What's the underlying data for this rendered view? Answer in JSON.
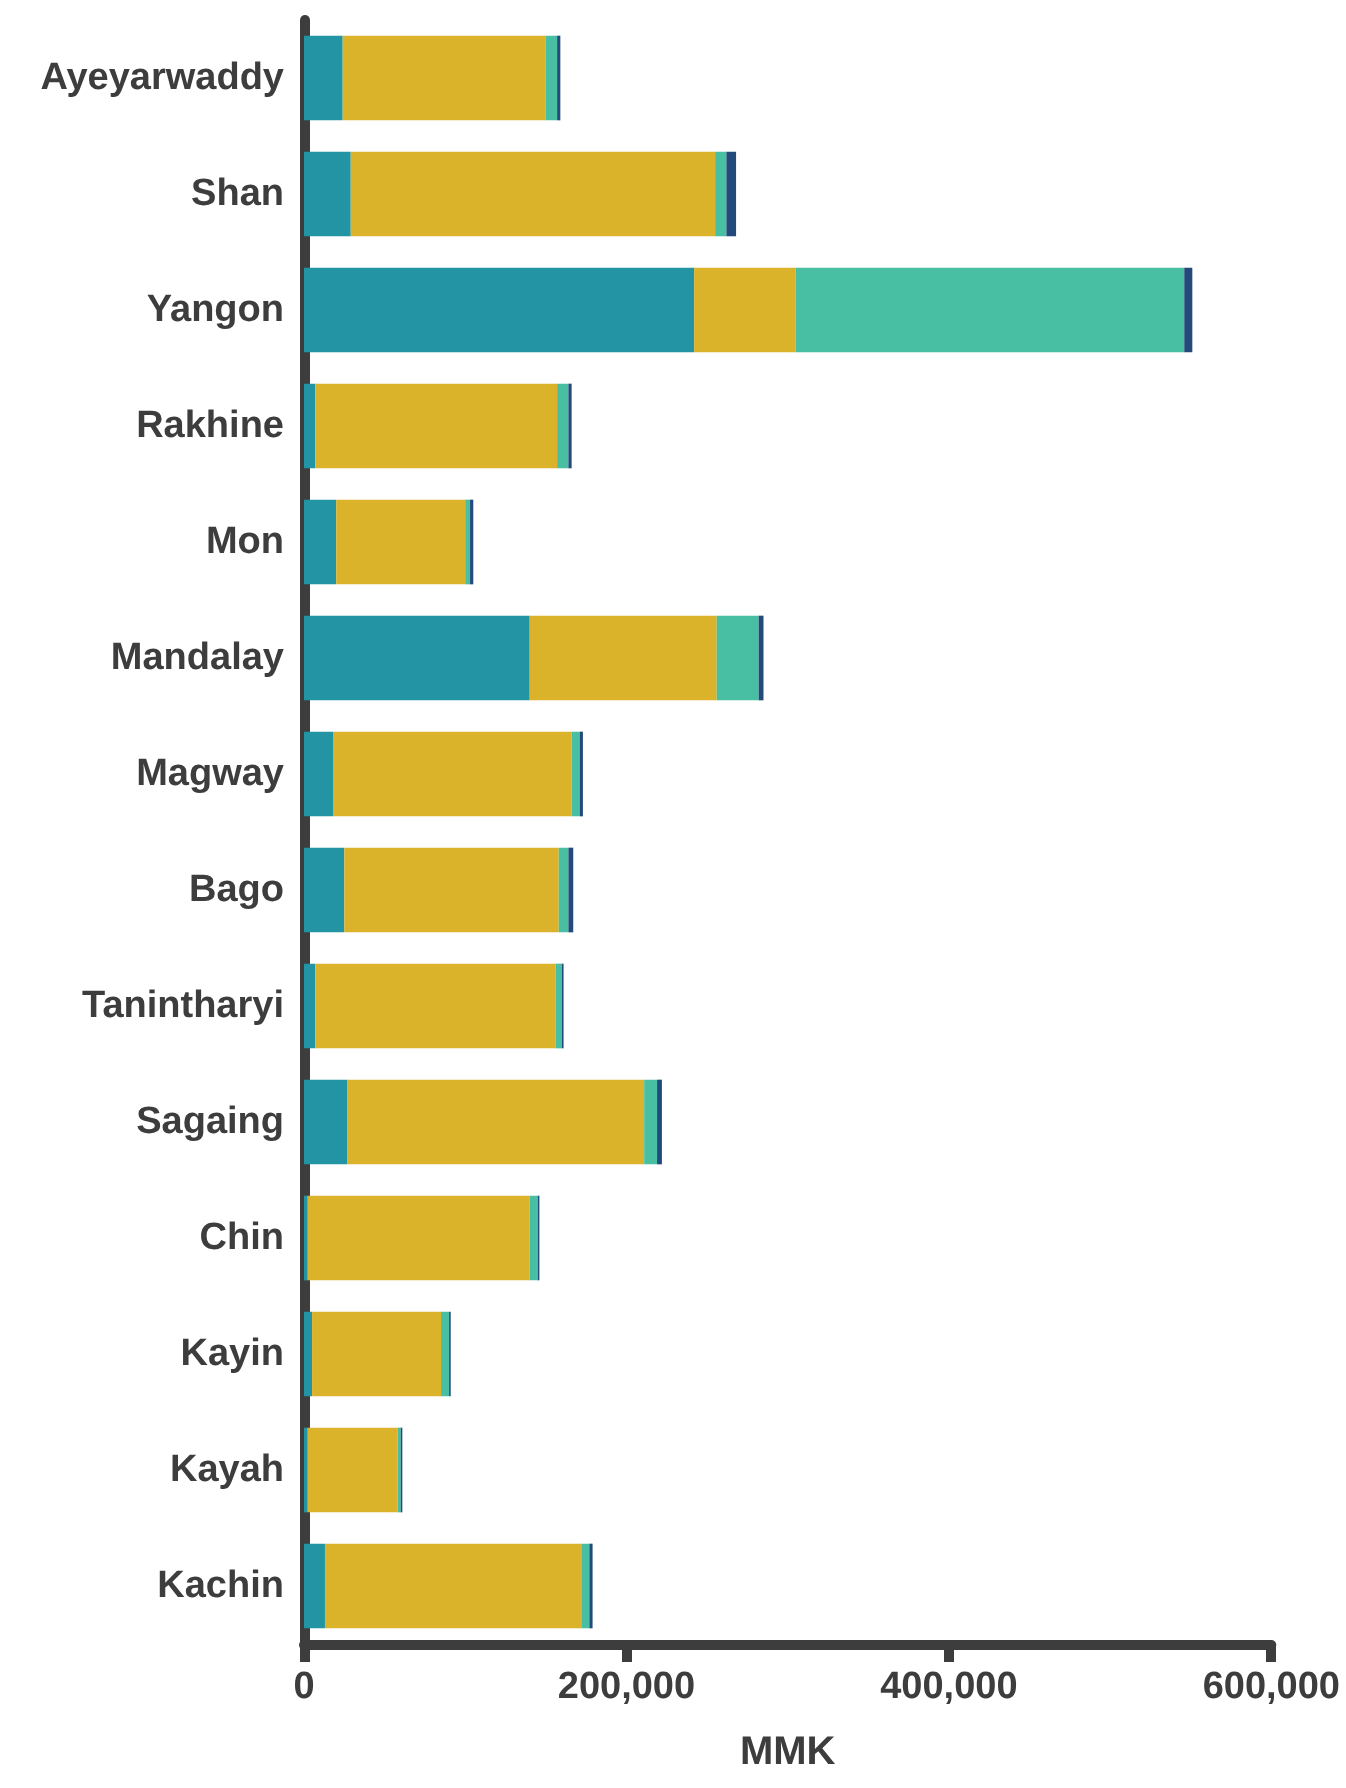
{
  "chart_data": {
    "type": "bar",
    "orientation": "horizontal",
    "stacked": true,
    "categories": [
      "Ayeyarwaddy",
      "Shan",
      "Yangon",
      "Rakhine",
      "Mon",
      "Mandalay",
      "Magway",
      "Bago",
      "Tanintharyi",
      "Sagaing",
      "Chin",
      "Kayin",
      "Kayah",
      "Kachin"
    ],
    "series": [
      {
        "color": "#2394a4",
        "values": [
          24000,
          29000,
          242000,
          7000,
          20000,
          140000,
          18000,
          25000,
          7000,
          27000,
          2000,
          5000,
          2000,
          13000
        ]
      },
      {
        "color": "#dbb32b",
        "values": [
          126000,
          226000,
          63000,
          150000,
          80000,
          116000,
          148000,
          133000,
          149000,
          184000,
          138000,
          80000,
          56000,
          159000
        ]
      },
      {
        "color": "#48bfa2",
        "values": [
          7000,
          7000,
          241000,
          7000,
          3000,
          26000,
          5000,
          6000,
          4000,
          8000,
          5000,
          5000,
          2000,
          5000
        ]
      },
      {
        "color": "#234a7a",
        "values": [
          2000,
          6000,
          5000,
          2000,
          2000,
          3000,
          2000,
          3000,
          1000,
          3000,
          1000,
          1000,
          1000,
          2000
        ]
      }
    ],
    "xlabel": "MMK",
    "xlim": [
      0,
      600000
    ],
    "xticks": [
      0,
      {
        "value": 200000,
        "label": "200,000"
      },
      {
        "value": 400000,
        "label": "400,000"
      },
      {
        "value": 600000,
        "label": "600,000"
      }
    ],
    "grid": false
  }
}
